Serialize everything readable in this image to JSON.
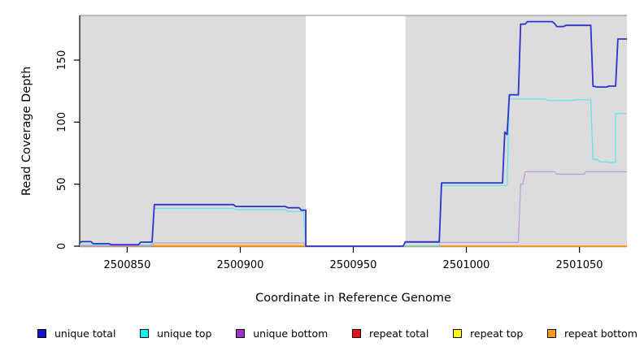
{
  "chart_data": {
    "type": "line",
    "title": "",
    "xlabel": "Coordinate in Reference Genome",
    "ylabel": "Read Coverage Depth",
    "xlim": [
      2500829,
      2501071
    ],
    "ylim": [
      0,
      186
    ],
    "x_ticks": [
      2500850,
      2500900,
      2500950,
      2501000,
      2501050
    ],
    "y_ticks": [
      0,
      50,
      100,
      150
    ],
    "grid": false,
    "legend_position": "bottom",
    "shaded_regions": [
      {
        "x1": 2500829,
        "x2": 2500929,
        "color": "#dcdcdc"
      },
      {
        "x1": 2500973,
        "x2": 2501071,
        "color": "#dcdcdc"
      }
    ],
    "gap_region": {
      "x1": 2500929,
      "x2": 2500973,
      "color": "#ffffff"
    },
    "draw_order": [
      "repeat total",
      "repeat top",
      "repeat bottom",
      "unique bottom",
      "unique top",
      "unique total"
    ],
    "series": [
      {
        "name": "unique total",
        "line_color": "#3032ce",
        "legend_color": "#1414cc",
        "line_width": 1.8,
        "points": [
          [
            2500829,
            3
          ],
          [
            2500830,
            3.7
          ],
          [
            2500834,
            3.7
          ],
          [
            2500835,
            2
          ],
          [
            2500842,
            2
          ],
          [
            2500843,
            1.2
          ],
          [
            2500855,
            1.2
          ],
          [
            2500856,
            3.3
          ],
          [
            2500861,
            3.3
          ],
          [
            2500862,
            33.5
          ],
          [
            2500897,
            33.5
          ],
          [
            2500898,
            32
          ],
          [
            2500920,
            32
          ],
          [
            2500921,
            31
          ],
          [
            2500926,
            31
          ],
          [
            2500927,
            29
          ],
          [
            2500929,
            29
          ],
          [
            2500929,
            0
          ],
          [
            2500972,
            0
          ],
          [
            2500973,
            3.5
          ],
          [
            2500988,
            3.5
          ],
          [
            2500989,
            51
          ],
          [
            2501016,
            51
          ],
          [
            2501017,
            92
          ],
          [
            2501018,
            90
          ],
          [
            2501019,
            122
          ],
          [
            2501023,
            122
          ],
          [
            2501024,
            179
          ],
          [
            2501026,
            179
          ],
          [
            2501027,
            181
          ],
          [
            2501038,
            181
          ],
          [
            2501039,
            179.5
          ],
          [
            2501040,
            177
          ],
          [
            2501043,
            177
          ],
          [
            2501044,
            178
          ],
          [
            2501055,
            178
          ],
          [
            2501056,
            129
          ],
          [
            2501058,
            128.3
          ],
          [
            2501062,
            128.3
          ],
          [
            2501063,
            129
          ],
          [
            2501066,
            129
          ],
          [
            2501067,
            167
          ],
          [
            2501071,
            167
          ]
        ]
      },
      {
        "name": "unique top",
        "line_color": "#55e6ee",
        "legend_color": "#00f5f5",
        "line_width": 1.2,
        "points": [
          [
            2500829,
            1
          ],
          [
            2500861,
            1
          ],
          [
            2500862,
            30.5
          ],
          [
            2500897,
            30.5
          ],
          [
            2500898,
            29.5
          ],
          [
            2500920,
            29.5
          ],
          [
            2500921,
            28
          ],
          [
            2500928,
            28
          ],
          [
            2500929,
            0
          ],
          [
            2500988,
            0
          ],
          [
            2500989,
            49
          ],
          [
            2501018,
            49
          ],
          [
            2501019,
            118.7
          ],
          [
            2501035,
            118.7
          ],
          [
            2501036,
            117.4
          ],
          [
            2501047,
            117.4
          ],
          [
            2501048,
            118
          ],
          [
            2501055,
            118
          ],
          [
            2501056,
            70
          ],
          [
            2501058,
            70
          ],
          [
            2501059,
            68
          ],
          [
            2501062,
            68
          ],
          [
            2501063,
            67.5
          ],
          [
            2501066,
            67.5
          ],
          [
            2501066,
            107
          ],
          [
            2501071,
            107
          ]
        ]
      },
      {
        "name": "unique bottom",
        "line_color": "#c09ade",
        "legend_color": "#9933cc",
        "line_width": 1.2,
        "points": [
          [
            2500829,
            0
          ],
          [
            2500861,
            0
          ],
          [
            2500862,
            2.6
          ],
          [
            2500928,
            2.6
          ],
          [
            2500929,
            0
          ],
          [
            2500972,
            0
          ],
          [
            2500973,
            3
          ],
          [
            2501023,
            3
          ],
          [
            2501024,
            50
          ],
          [
            2501025,
            50
          ],
          [
            2501026,
            60
          ],
          [
            2501039,
            60
          ],
          [
            2501040,
            58
          ],
          [
            2501052,
            58
          ],
          [
            2501053,
            60
          ],
          [
            2501071,
            60
          ]
        ]
      },
      {
        "name": "repeat total",
        "line_color": "#e06080",
        "legend_color": "#ee1111",
        "line_width": 1.2,
        "points": [
          [
            2500829,
            0.7
          ],
          [
            2500928,
            0.7
          ],
          [
            2500929,
            0
          ],
          [
            2501071,
            0
          ]
        ]
      },
      {
        "name": "repeat top",
        "line_color": "#eedd00",
        "legend_color": "#ffff00",
        "line_width": 1.2,
        "points": [
          [
            2500829,
            0
          ],
          [
            2500861,
            0
          ],
          [
            2500862,
            0.7
          ],
          [
            2500928,
            0.7
          ],
          [
            2500929,
            0
          ],
          [
            2501071,
            0
          ]
        ]
      },
      {
        "name": "repeat bottom",
        "line_color": "#ff9922",
        "legend_color": "#ff9912",
        "line_width": 1.8,
        "points": [
          [
            2500829,
            0
          ],
          [
            2501071,
            0
          ]
        ]
      }
    ]
  }
}
